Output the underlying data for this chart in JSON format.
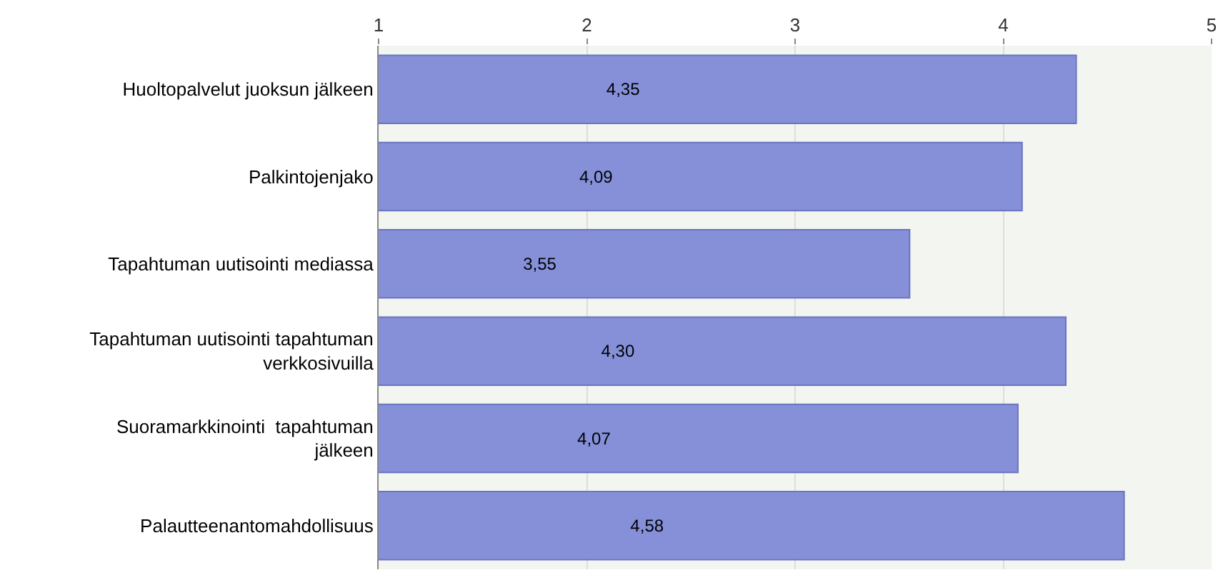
{
  "chart_data": {
    "type": "bar",
    "orientation": "horizontal",
    "categories": [
      "Huoltopalvelut juoksun jälkeen",
      "Palkintojenjako",
      "Tapahtuman uutisointi mediassa",
      "Tapahtuman uutisointi tapahtuman\nverkkosivuilla",
      "Suoramarkkinointi  tapahtuman\njälkeen",
      "Palautteenantomahdollisuus"
    ],
    "values": [
      4.35,
      4.09,
      3.55,
      4.3,
      4.07,
      4.58
    ],
    "value_labels": [
      "4,35",
      "4,09",
      "3,55",
      "4,30",
      "4,07",
      "4,58"
    ],
    "color": "#8590d9",
    "xlim": [
      1,
      5
    ],
    "xticks": [
      1,
      2,
      3,
      4,
      5
    ],
    "grid": "x"
  }
}
